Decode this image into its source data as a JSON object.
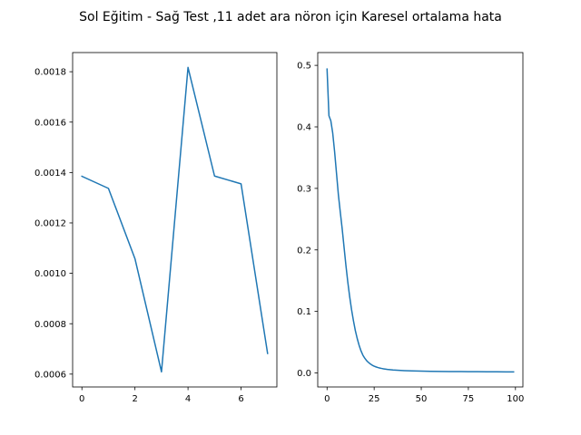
{
  "figure": {
    "suptitle": "Sol Eğitim - Sağ Test ,11 adet ara nöron için Karesel ortalama hata"
  },
  "colors": {
    "series": "#1f77b4",
    "background": "#ffffff",
    "axes": "#000000"
  },
  "chart_data": [
    {
      "type": "line",
      "title": "",
      "xlabel": "",
      "ylabel": "",
      "grid": false,
      "xlim": [
        -0.35,
        7.35
      ],
      "ylim": [
        0.000549,
        0.001876
      ],
      "xticks": [
        0,
        2,
        4,
        6
      ],
      "xtick_labels": [
        "0",
        "2",
        "4",
        "6"
      ],
      "yticks": [
        0.0006,
        0.0008,
        0.001,
        0.0012,
        0.0014,
        0.0016,
        0.0018
      ],
      "ytick_labels": [
        "0.0006",
        "0.0008",
        "0.0010",
        "0.0012",
        "0.0014",
        "0.0016",
        "0.0018"
      ],
      "series": [
        {
          "x": [
            0,
            1,
            2,
            3,
            4,
            5,
            6,
            7
          ],
          "y": [
            0.001385,
            0.001337,
            0.001058,
            0.000609,
            0.001817,
            0.001386,
            0.001355,
            0.000682
          ]
        }
      ]
    },
    {
      "type": "line",
      "title": "",
      "xlabel": "",
      "ylabel": "",
      "grid": false,
      "xlim": [
        -4.95,
        103.95
      ],
      "ylim": [
        -0.0228,
        0.5208
      ],
      "xticks": [
        0,
        25,
        50,
        75,
        100
      ],
      "xtick_labels": [
        "0",
        "25",
        "50",
        "75",
        "100"
      ],
      "yticks": [
        0.0,
        0.1,
        0.2,
        0.3,
        0.4,
        0.5
      ],
      "ytick_labels": [
        "0.0",
        "0.1",
        "0.2",
        "0.3",
        "0.4",
        "0.5"
      ],
      "series": [
        {
          "x": [
            0,
            1,
            2,
            3,
            4,
            5,
            6,
            7,
            8,
            9,
            10,
            11,
            12,
            13,
            14,
            15,
            16,
            17,
            18,
            19,
            20,
            21,
            22,
            23,
            24,
            25,
            26,
            27,
            28,
            29,
            30,
            32,
            35,
            38,
            41,
            45,
            50,
            55,
            60,
            65,
            70,
            75,
            80,
            85,
            90,
            95,
            99
          ],
          "y": [
            0.494,
            0.418,
            0.41,
            0.39,
            0.36,
            0.325,
            0.29,
            0.262,
            0.235,
            0.205,
            0.175,
            0.148,
            0.124,
            0.103,
            0.085,
            0.069,
            0.056,
            0.045,
            0.036,
            0.029,
            0.024,
            0.02,
            0.017,
            0.0145,
            0.0125,
            0.011,
            0.0098,
            0.0088,
            0.008,
            0.0073,
            0.0067,
            0.0058,
            0.0049,
            0.0043,
            0.0038,
            0.0034,
            0.003,
            0.0027,
            0.0025,
            0.0023,
            0.0022,
            0.0021,
            0.002,
            0.0019,
            0.0018,
            0.0017,
            0.0017
          ]
        }
      ]
    }
  ]
}
